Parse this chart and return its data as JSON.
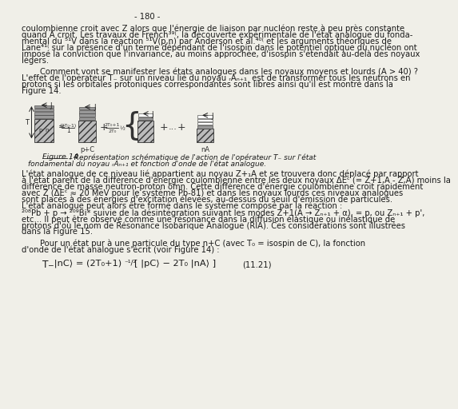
{
  "page_number": "- 180 -",
  "background_color": "#f0efe8",
  "text_color": "#1a1a1a",
  "font_size_body": 7.2,
  "font_size_small": 6.0,
  "font_size_caption": 6.8,
  "paragraph1": "coulombienne croit avec Z alors que l'énergie de liaison par nucléon reste à peu près constante",
  "paragraph1b": "quand A croit. Les travaux de French³⁹⁽, la découverte expérimentale de l'état analogue du fonda-",
  "paragraph1c": "mental du ⁵¹V dans la réaction ⁵¹V(p,n) par Anderson et al.⁴⁰⁽ et les arguments théoriques de",
  "paragraph1d": "Lane⁴¹⁽ sur la présence d'un terme dépendant de l'isospin dans le potentiel optique du nucléon ont",
  "paragraph1e": "imposé la conviction que l'invariance, au moins approchée, d'isospin s'étendait au-delà des noyaux",
  "paragraph1f": "légers.",
  "paragraph2": "Comment vont se manifester les états analogues dans les noyaux moyens et lourds (A > 40) ?",
  "paragraph2b": "L'effet de l'opérateur T₋ sur un niveau lié du noyau ᵣAₙ₊₁  est de transformer tous les neutrons en",
  "paragraph2c": "protons si les orbitales protoniques correspondantes sont libres ainsi qu'il est montré dans la",
  "paragraph2d": "Figure 14.",
  "figure_caption_title": "Figure 14",
  "figure_caption": " : Représentation schématique de l'action de l'opérateur T₋ sur l'état",
  "figure_caption2": "fondamental du noyau ᵣAₙ₊₁ et fonction d'onde de l'état analogue.",
  "paragraph3": "L'état analogue de ce niveau lié appartient au noyau Z+₁A et se trouvera donc déplacé par rapport",
  "paragraph3b": "à l'état parent de la différence d'énergie coulombienne entre les deux noyaux ΔEᶜ (= Z+1,A - Z,A) moins la",
  "paragraph3c": "différence de masse neutron-proton δmn. Cette différence d'énergie coulombienne croit rapidement",
  "paragraph3d": "avec Z (ΔEᶜ ≈ 20 MeV pour le système Pb-81) et dans les noyaux lourds ces niveaux analogues",
  "paragraph3e": "sont placés à des énergies d'excitation élevées, au-dessus du seuil d'émission de particules.",
  "paragraph3f": "L'état analogue peut alors être formé dans le système composé par la réaction :",
  "reaction": "²⁰⁸Pb + p → ²⁰⁹Bi* suivie de la désintégration suivant les modes Z+1(A → Zₙ₊₁ + α), = p, ou Zₙ₊₁ + p',",
  "paragraph3g": "etc... Il peut être observé comme une résonance dans la diffusion élastique ou inélastique de",
  "paragraph3h": "protons d'où le nom de Résonance Isobarique Analogue (RIA). Ces considérations sont illustrées",
  "paragraph3i": "dans la Figure 15.",
  "paragraph4": "Pour un état pur à une particule du type n+C (avec T₀ = isospin de C), la fonction",
  "paragraph4b": "d'onde de l'état analogue s'écrit (voir Figure 14) :",
  "eq_number": "(11.21)"
}
